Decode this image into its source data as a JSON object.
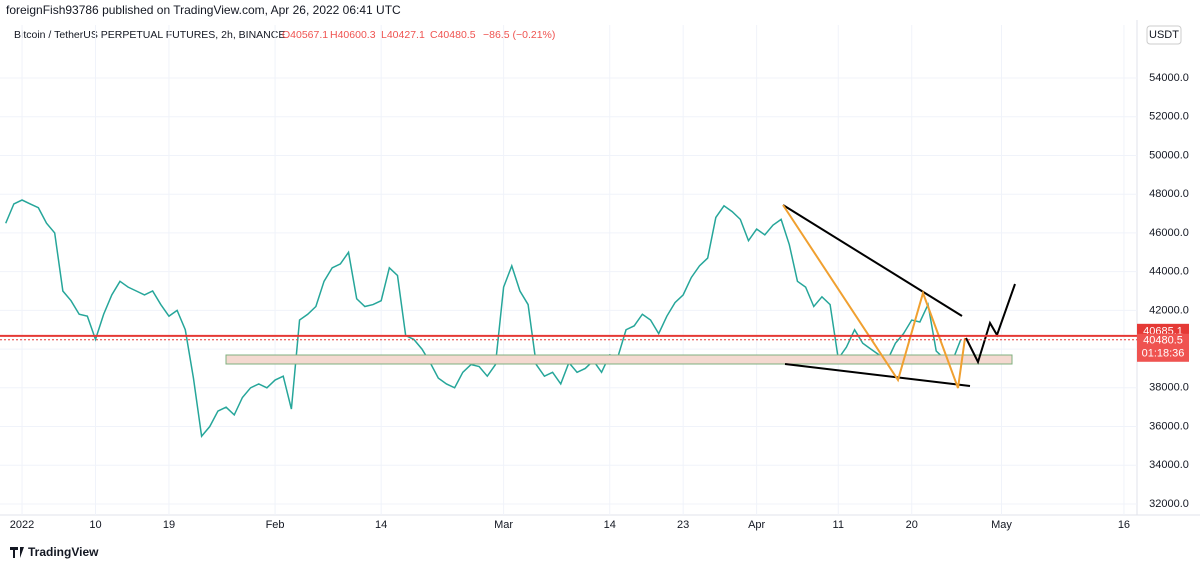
{
  "header": "foreignFish93786 published on TradingView.com, Apr 26, 2022 06:41 UTC",
  "symbol": {
    "name": "Bitcoin / TetherUS PERPETUAL FUTURES, 2h, BINANCE",
    "open": "O40567.1",
    "high": "H40600.3",
    "low": "L40427.1",
    "close": "C40480.5",
    "change": "−86.5 (−0.21%)"
  },
  "currency": "USDT",
  "footer": "TradingView",
  "chart_data": {
    "type": "line",
    "x": [
      -2,
      -1,
      0,
      1,
      2,
      3,
      4,
      5,
      6,
      7,
      8,
      9,
      10,
      11,
      12,
      13,
      14,
      15,
      16,
      17,
      18,
      19,
      20,
      21,
      22,
      23,
      24,
      25,
      26,
      27,
      28,
      29,
      30,
      31,
      32,
      33,
      34,
      35,
      36,
      37,
      38,
      39,
      40,
      41,
      42,
      43,
      44,
      45,
      46,
      47,
      48,
      49,
      50,
      51,
      52,
      53,
      54,
      55,
      56,
      57,
      58,
      59,
      60,
      61,
      62,
      63,
      64,
      65,
      66,
      67,
      68,
      69,
      70,
      71,
      72,
      73,
      74,
      75,
      76,
      77,
      78,
      79,
      80,
      81,
      82,
      83,
      84,
      85,
      86,
      87,
      88,
      89,
      90,
      91,
      92,
      93,
      94,
      95,
      96,
      97,
      98,
      99,
      100,
      101,
      102,
      103,
      104,
      105,
      106,
      107,
      108,
      109,
      110,
      111,
      112,
      113,
      114,
      115
    ],
    "series": [
      {
        "color": "#26a69a",
        "values": [
          46500,
          47500,
          47700,
          47500,
          47300,
          46500,
          46000,
          43000,
          42500,
          41800,
          41700,
          40500,
          41800,
          42800,
          43500,
          43200,
          43000,
          42800,
          43000,
          42300,
          41700,
          42000,
          41000,
          38500,
          35500,
          36000,
          36800,
          37000,
          36600,
          37500,
          38000,
          38200,
          38000,
          38400,
          38600,
          36900,
          41500,
          41800,
          42200,
          43500,
          44200,
          44400,
          45000,
          42600,
          42200,
          42300,
          42500,
          44200,
          43800,
          40700,
          40500,
          40000,
          39300,
          38500,
          38200,
          38000,
          38800,
          39200,
          39100,
          38600,
          39200,
          43200,
          44300,
          43000,
          42300,
          39200,
          38600,
          38800,
          38200,
          39300,
          38800,
          39000,
          39400,
          38800,
          39700,
          39600,
          41000,
          41200,
          41800,
          41500,
          40800,
          41700,
          42400,
          42800,
          43700,
          44300,
          44700,
          46800,
          47400,
          47100,
          46700,
          45600,
          46200,
          45900,
          46400,
          46700,
          45400,
          43500,
          43200,
          42200,
          42700,
          42300,
          39500,
          40100,
          41000,
          40300,
          40000,
          39700,
          39400,
          40300,
          40800,
          41500,
          41400,
          42300,
          39900,
          39500,
          39400,
          40480.5
        ]
      }
    ],
    "xlim": [
      -2.7,
      136.6
    ],
    "xticks": [
      {
        "value": 0,
        "label": "2022"
      },
      {
        "value": 9,
        "label": "10"
      },
      {
        "value": 18,
        "label": "19"
      },
      {
        "value": 31,
        "label": "Feb"
      },
      {
        "value": 44,
        "label": "14"
      },
      {
        "value": 59,
        "label": "Mar"
      },
      {
        "value": 72,
        "label": "14"
      },
      {
        "value": 81,
        "label": "23"
      },
      {
        "value": 90,
        "label": "Apr"
      },
      {
        "value": 100,
        "label": "11"
      },
      {
        "value": 109,
        "label": "20"
      },
      {
        "value": 120,
        "label": "May"
      },
      {
        "value": 135,
        "label": "16"
      }
    ],
    "ylim": [
      31430,
      56740
    ],
    "yticks": [
      {
        "value": 32000,
        "label": "32000.0"
      },
      {
        "value": 34000,
        "label": "34000.0"
      },
      {
        "value": 36000,
        "label": "36000.0"
      },
      {
        "value": 38000,
        "label": "38000.0"
      },
      {
        "value": 40000,
        "label": "40000.0"
      },
      {
        "value": 42000,
        "label": "42000.0"
      },
      {
        "value": 44000,
        "label": "44000.0"
      },
      {
        "value": 46000,
        "label": "46000.0"
      },
      {
        "value": 48000,
        "label": "48000.0"
      },
      {
        "value": 50000,
        "label": "50000.0"
      },
      {
        "value": 52000,
        "label": "52000.0"
      },
      {
        "value": 54000,
        "label": "54000.0"
      }
    ],
    "mark_price": 40685.1,
    "last_price": 40480.5,
    "countdown": "01:18:36"
  }
}
